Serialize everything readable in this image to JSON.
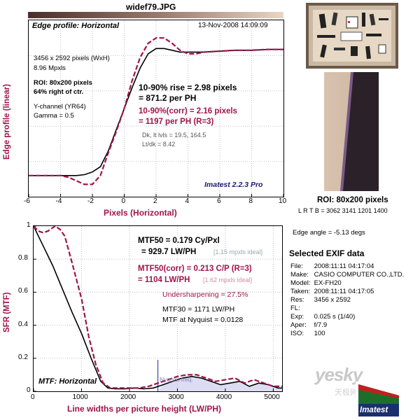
{
  "file_title": "widef79.JPG",
  "colors": {
    "maroon": "#a0144a",
    "navy": "#1a1a6e",
    "grid": "#b0b0b0",
    "title_bg_left": "#4a2e2a",
    "title_bg_right": "#e8d6c4"
  },
  "edge_panel": {
    "title": "Edge profile: Horizontal",
    "date": "13-Nov-2008 14:09:09",
    "size": "3456 x 2592 pixels (WxH)",
    "mpxls": "8.96 Mpxls",
    "roi": "ROI: 80x200 pixels",
    "roi_pos": "64% right of ctr.",
    "channel": "Y-channel  (YR64)",
    "gamma": "Gamma = 0.5",
    "rise": "10-90% rise = 2.98 pixels",
    "rise_ph": "= 871.2 per PH",
    "rise_corr": "10-90%(corr) = 2.16 pixels",
    "rise_corr_ph": "= 1197 per PH  (R=3)",
    "dk": "Dk, lt lvls = 19.5, 164.5",
    "ltdk": "Lt/dk = 8.42",
    "version": "Imatest 2.2.3 Pro",
    "ylabel": "Edge profile (linear)",
    "xlabel": "Pixels (Horizontal)"
  },
  "mtf_panel": {
    "title": "MTF: Horizontal",
    "mtf50": "MTF50 = 0.179 Cy/Pxl",
    "mtf50_lw": "= 929.7 LW/PH",
    "mtf50_ideal": "[1.15 mpxls ideal]",
    "mtf50c": "MTF50(corr) = 0.213 C/P  (R=3)",
    "mtf50c_lw": "= 1104 LW/PH",
    "mtf50c_ideal": "[1.62 mpxls ideal]",
    "undersharp": "Undersharpening = 27.5%",
    "mtf30": "MTF30 = 1171 LW/PH",
    "nyq": "MTF at Nyquist = 0.0128",
    "nyq_label": "Nyquist freq.",
    "ylabel": "SFR (MTF)",
    "xlabel": "Line widths per picture height (LW/PH)"
  },
  "roi_info": {
    "label": "ROI: 80x200 pixels",
    "lrtb": "L R T B = 3062 3141  1201 1400",
    "edge_angle": "Edge angle = -5.13 degs"
  },
  "exif": {
    "title": "Selected EXIF data",
    "rows": [
      {
        "k": "File:",
        "v": "2008:11:11 04:17:04"
      },
      {
        "k": "Make:",
        "v": "CASIO COMPUTER CO.,LTD."
      },
      {
        "k": "Model:",
        "v": "EX-FH20"
      },
      {
        "k": "Taken:",
        "v": "2008:11:11 04:17:05"
      },
      {
        "k": "Res:",
        "v": "3456 x 2592"
      },
      {
        "k": "FL:",
        "v": ""
      },
      {
        "k": "Exp:",
        "v": "0.025 s  (1/40)"
      },
      {
        "k": "Aper:",
        "v": "f/7.9"
      },
      {
        "k": "ISO:",
        "v": "100"
      }
    ]
  },
  "logo": {
    "text": "Imatest"
  },
  "watermark": {
    "text": "yesky",
    "sub": "天极网"
  },
  "chart_data": [
    {
      "type": "line",
      "title": "Edge profile: Horizontal",
      "xlabel": "Pixels (Horizontal)",
      "ylabel": "Edge profile (linear)",
      "xlim": [
        -6,
        10
      ],
      "ylim": [
        0,
        1
      ],
      "xticks": [
        -6,
        -4,
        -2,
        0,
        2,
        4,
        6,
        8,
        10
      ],
      "grid": true,
      "series": [
        {
          "color": "#000000",
          "x": [
            -6,
            -5,
            -4,
            -3,
            -2.5,
            -2,
            -1.5,
            -1,
            -0.5,
            0,
            0.5,
            1,
            1.5,
            2,
            2.5,
            3,
            3.5,
            4,
            5,
            6,
            7,
            8,
            9,
            10
          ],
          "y": [
            0.12,
            0.12,
            0.12,
            0.12,
            0.125,
            0.14,
            0.17,
            0.26,
            0.38,
            0.5,
            0.62,
            0.73,
            0.81,
            0.84,
            0.84,
            0.83,
            0.82,
            0.82,
            0.82,
            0.825,
            0.83,
            0.83,
            0.835,
            0.835
          ]
        },
        {
          "color": "#a0144a",
          "dashed": true,
          "x": [
            -6,
            -5,
            -4,
            -3.5,
            -3,
            -2.5,
            -2,
            -1.5,
            -1,
            -0.5,
            0,
            0.5,
            1,
            1.5,
            2,
            2.5,
            3,
            3.5,
            4,
            4.5,
            5,
            6,
            7,
            8,
            9,
            10
          ],
          "y": [
            0.12,
            0.12,
            0.12,
            0.11,
            0.09,
            0.07,
            0.07,
            0.12,
            0.25,
            0.37,
            0.5,
            0.66,
            0.79,
            0.87,
            0.9,
            0.9,
            0.87,
            0.83,
            0.81,
            0.81,
            0.82,
            0.825,
            0.83,
            0.83,
            0.835,
            0.835
          ]
        }
      ]
    },
    {
      "type": "line",
      "title": "MTF: Horizontal",
      "xlabel": "Line widths per picture height (LW/PH)",
      "ylabel": "SFR (MTF)",
      "xlim": [
        0,
        5184
      ],
      "ylim": [
        0,
        1
      ],
      "xticks": [
        0,
        1000,
        2000,
        3000,
        4000,
        5000
      ],
      "yticks": [
        0,
        0.2,
        0.4,
        0.6,
        0.8,
        1
      ],
      "nyquist": 2592,
      "grid": true,
      "series": [
        {
          "color": "#000000",
          "x": [
            0,
            100,
            200,
            400,
            600,
            800,
            1000,
            1200,
            1400,
            1550,
            1700,
            1900,
            2100,
            2300,
            2500,
            2700,
            2900,
            3100,
            3300,
            3500,
            3700,
            3900,
            4100,
            4300,
            4500,
            4700,
            4900,
            5100,
            5184
          ],
          "y": [
            1,
            0.94,
            0.88,
            0.76,
            0.62,
            0.48,
            0.35,
            0.2,
            0.06,
            0.02,
            0.015,
            0.015,
            0.02,
            0.015,
            0.02,
            0.04,
            0.06,
            0.08,
            0.09,
            0.08,
            0.06,
            0.04,
            0.05,
            0.06,
            0.03,
            0.05,
            0.04,
            0.02,
            0.02
          ]
        },
        {
          "color": "#a0144a",
          "dashed": true,
          "x": [
            0,
            100,
            200,
            300,
            450,
            550,
            650,
            800,
            1000,
            1150,
            1300,
            1450,
            1600,
            1800,
            2000,
            2200,
            2400,
            2600,
            2800,
            3000,
            3200,
            3400,
            3600,
            3800,
            4000,
            4200,
            4400,
            4600,
            4800,
            5000,
            5184
          ],
          "y": [
            1,
            0.97,
            0.96,
            0.97,
            1.0,
            0.98,
            0.94,
            0.78,
            0.56,
            0.33,
            0.16,
            0.05,
            0.02,
            0.02,
            0.02,
            0.02,
            0.03,
            0.05,
            0.07,
            0.09,
            0.1,
            0.1,
            0.08,
            0.06,
            0.07,
            0.08,
            0.05,
            0.07,
            0.05,
            0.03,
            0.03
          ]
        }
      ]
    }
  ]
}
